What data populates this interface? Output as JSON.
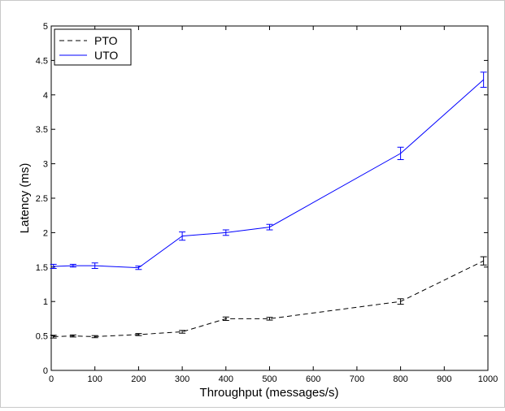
{
  "chart_data": {
    "type": "line",
    "xlabel": "Throughput (messages/s)",
    "ylabel": "Latency (ms)",
    "xlim": [
      0,
      1000
    ],
    "ylim": [
      0,
      5
    ],
    "xticks": [
      "0",
      "100",
      "200",
      "300",
      "400",
      "500",
      "600",
      "700",
      "800",
      "900",
      "1000"
    ],
    "yticks": [
      "0",
      "0.5",
      "1",
      "1.5",
      "2",
      "2.5",
      "3",
      "3.5",
      "4",
      "4.5",
      "5"
    ],
    "grid": false,
    "legend_position": "top-left",
    "series": [
      {
        "name": "PTO",
        "color": "#000000",
        "line_style": "dashed",
        "x": [
          5,
          50,
          100,
          200,
          300,
          400,
          500,
          800,
          990
        ],
        "y": [
          0.49,
          0.5,
          0.49,
          0.52,
          0.56,
          0.75,
          0.75,
          1.0,
          1.59
        ],
        "err": [
          0.02,
          0.015,
          0.015,
          0.015,
          0.02,
          0.025,
          0.02,
          0.04,
          0.06
        ]
      },
      {
        "name": "UTO",
        "color": "#0000ff",
        "line_style": "solid",
        "x": [
          5,
          50,
          100,
          200,
          300,
          400,
          500,
          800,
          990
        ],
        "y": [
          1.51,
          1.52,
          1.52,
          1.49,
          1.95,
          2.0,
          2.08,
          3.15,
          4.22
        ],
        "err": [
          0.03,
          0.02,
          0.04,
          0.025,
          0.06,
          0.04,
          0.04,
          0.09,
          0.11
        ]
      }
    ]
  }
}
